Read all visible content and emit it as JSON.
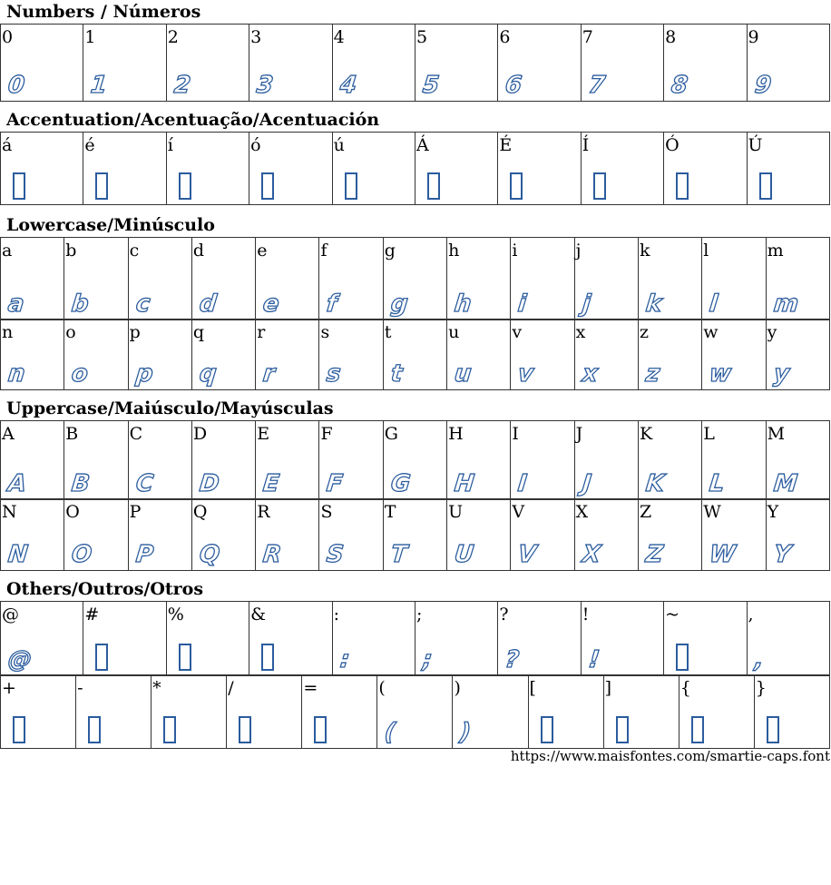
{
  "sections": [
    {
      "title": "Numbers / Números",
      "rows": [
        [
          {
            "c": "0"
          },
          {
            "c": "1"
          },
          {
            "c": "2"
          },
          {
            "c": "3"
          },
          {
            "c": "4"
          },
          {
            "c": "5"
          },
          {
            "c": "6"
          },
          {
            "c": "7"
          },
          {
            "c": "8"
          },
          {
            "c": "9"
          }
        ]
      ]
    },
    {
      "title": "Accentuation/Acentuação/Acentuación",
      "rows": [
        [
          {
            "c": "á",
            "missing": true
          },
          {
            "c": "é",
            "missing": true
          },
          {
            "c": "í",
            "missing": true
          },
          {
            "c": "ó",
            "missing": true
          },
          {
            "c": "ú",
            "missing": true
          },
          {
            "c": "Á",
            "missing": true
          },
          {
            "c": "É",
            "missing": true
          },
          {
            "c": "Í",
            "missing": true
          },
          {
            "c": "Ó",
            "missing": true
          },
          {
            "c": "Ú",
            "missing": true
          }
        ]
      ]
    },
    {
      "title": "Lowercase/Minúsculo",
      "rows": [
        [
          {
            "c": "a"
          },
          {
            "c": "b"
          },
          {
            "c": "c"
          },
          {
            "c": "d"
          },
          {
            "c": "e"
          },
          {
            "c": "f"
          },
          {
            "c": "g"
          },
          {
            "c": "h"
          },
          {
            "c": "i"
          },
          {
            "c": "j"
          },
          {
            "c": "k"
          },
          {
            "c": "l"
          },
          {
            "c": "m"
          }
        ],
        [
          {
            "c": "n"
          },
          {
            "c": "o"
          },
          {
            "c": "p"
          },
          {
            "c": "q"
          },
          {
            "c": "r"
          },
          {
            "c": "s"
          },
          {
            "c": "t"
          },
          {
            "c": "u"
          },
          {
            "c": "v"
          },
          {
            "c": "x"
          },
          {
            "c": "z"
          },
          {
            "c": "w"
          },
          {
            "c": "y"
          }
        ]
      ]
    },
    {
      "title": "Uppercase/Maiúsculo/Mayúsculas",
      "rows": [
        [
          {
            "c": "A"
          },
          {
            "c": "B"
          },
          {
            "c": "C"
          },
          {
            "c": "D"
          },
          {
            "c": "E"
          },
          {
            "c": "F"
          },
          {
            "c": "G"
          },
          {
            "c": "H"
          },
          {
            "c": "I"
          },
          {
            "c": "J"
          },
          {
            "c": "K"
          },
          {
            "c": "L"
          },
          {
            "c": "M"
          }
        ],
        [
          {
            "c": "N"
          },
          {
            "c": "O"
          },
          {
            "c": "P"
          },
          {
            "c": "Q"
          },
          {
            "c": "R"
          },
          {
            "c": "S"
          },
          {
            "c": "T"
          },
          {
            "c": "U"
          },
          {
            "c": "V"
          },
          {
            "c": "X"
          },
          {
            "c": "Z"
          },
          {
            "c": "W"
          },
          {
            "c": "Y"
          }
        ]
      ]
    },
    {
      "title": "Others/Outros/Otros",
      "rows": [
        [
          {
            "c": "@"
          },
          {
            "c": "#",
            "missing": true
          },
          {
            "c": "%",
            "missing": true
          },
          {
            "c": "&",
            "missing": true
          },
          {
            "c": ":"
          },
          {
            "c": ";"
          },
          {
            "c": "?"
          },
          {
            "c": "!"
          },
          {
            "c": "~",
            "missing": true
          },
          {
            "c": ","
          }
        ],
        [
          {
            "c": "+",
            "missing": true
          },
          {
            "c": "-",
            "missing": true
          },
          {
            "c": "*",
            "missing": true
          },
          {
            "c": "/",
            "missing": true
          },
          {
            "c": "=",
            "missing": true
          },
          {
            "c": "("
          },
          {
            "c": ")"
          },
          {
            "c": "[",
            "missing": true
          },
          {
            "c": "]",
            "missing": true
          },
          {
            "c": "{",
            "missing": true
          },
          {
            "c": "}",
            "missing": true
          }
        ]
      ]
    }
  ],
  "footer_url": "https://www.maisfontes.com/smartie-caps.font",
  "colors": {
    "glyph": "#2b5c9e",
    "border": "#333333"
  }
}
